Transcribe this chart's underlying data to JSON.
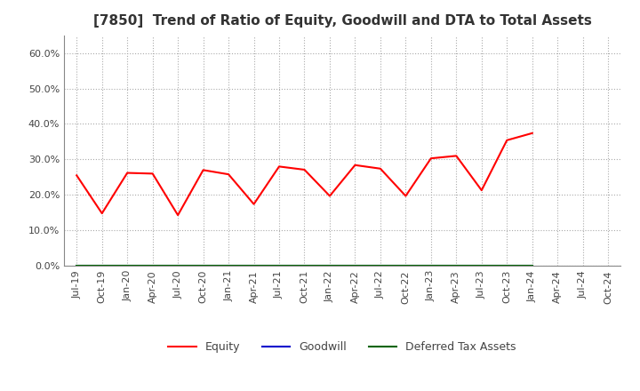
{
  "title": "[7850]  Trend of Ratio of Equity, Goodwill and DTA to Total Assets",
  "x_labels": [
    "Jul-19",
    "Oct-19",
    "Jan-20",
    "Apr-20",
    "Jul-20",
    "Oct-20",
    "Jan-21",
    "Apr-21",
    "Jul-21",
    "Oct-21",
    "Jan-22",
    "Apr-22",
    "Jul-22",
    "Oct-22",
    "Jan-23",
    "Apr-23",
    "Jul-23",
    "Oct-23",
    "Jan-24",
    "Apr-24",
    "Jul-24",
    "Oct-24"
  ],
  "equity": [
    0.255,
    0.148,
    0.262,
    0.26,
    0.143,
    0.27,
    0.258,
    0.174,
    0.28,
    0.271,
    0.197,
    0.284,
    0.274,
    0.197,
    0.303,
    0.31,
    0.213,
    0.354,
    0.374,
    null,
    null,
    null
  ],
  "goodwill": [
    0.0,
    0.0,
    0.0,
    0.0,
    0.0,
    0.0,
    0.0,
    0.0,
    0.0,
    0.0,
    0.0,
    0.0,
    0.0,
    0.0,
    0.0,
    0.0,
    0.0,
    0.0,
    0.0,
    null,
    null,
    null
  ],
  "dta": [
    0.0,
    0.0,
    0.0,
    0.0,
    0.0,
    0.0,
    0.0,
    0.0,
    0.0,
    0.0,
    0.0,
    0.0,
    0.0,
    0.0,
    0.0,
    0.0,
    0.0,
    0.0,
    0.0,
    null,
    null,
    null
  ],
  "equity_color": "#ff0000",
  "goodwill_color": "#0000cc",
  "dta_color": "#006400",
  "ylim": [
    0.0,
    0.65
  ],
  "yticks": [
    0.0,
    0.1,
    0.2,
    0.3,
    0.4,
    0.5,
    0.6
  ],
  "background_color": "#ffffff",
  "grid_color": "#aaaaaa",
  "title_fontsize": 11,
  "legend_labels": [
    "Equity",
    "Goodwill",
    "Deferred Tax Assets"
  ]
}
